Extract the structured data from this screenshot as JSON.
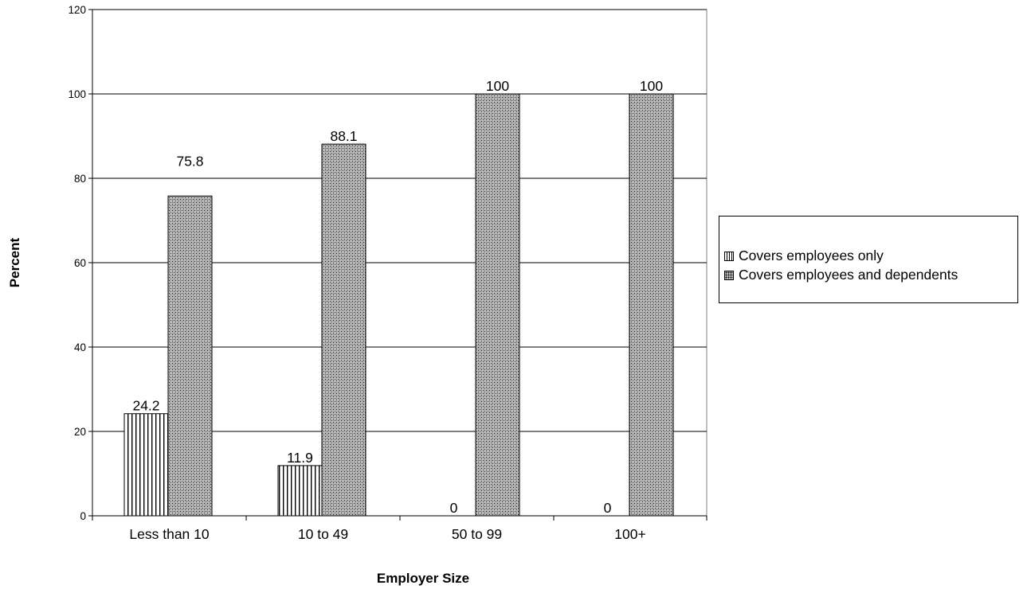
{
  "chart_data": {
    "type": "bar",
    "title": "",
    "xlabel": "Employer Size",
    "ylabel": "Percent",
    "ylim": [
      0,
      120
    ],
    "yticks": [
      "0",
      "20",
      "40",
      "60",
      "80",
      "100",
      "120"
    ],
    "categories": [
      "Less than 10",
      "10 to 49",
      "50 to 99",
      "100+"
    ],
    "series": [
      {
        "name": "Covers employees only",
        "values": [
          24.2,
          11.9,
          0,
          0
        ],
        "labels": [
          "24.2",
          "11.9",
          "0",
          "0"
        ]
      },
      {
        "name": "Covers employees and dependents",
        "values": [
          75.8,
          88.1,
          100,
          100
        ],
        "labels": [
          "75.8",
          "88.1",
          "100",
          "100"
        ]
      }
    ],
    "grid": true,
    "legend_position": "right"
  },
  "legend": {
    "items": [
      "Covers employees only",
      "Covers employees and dependents"
    ]
  }
}
